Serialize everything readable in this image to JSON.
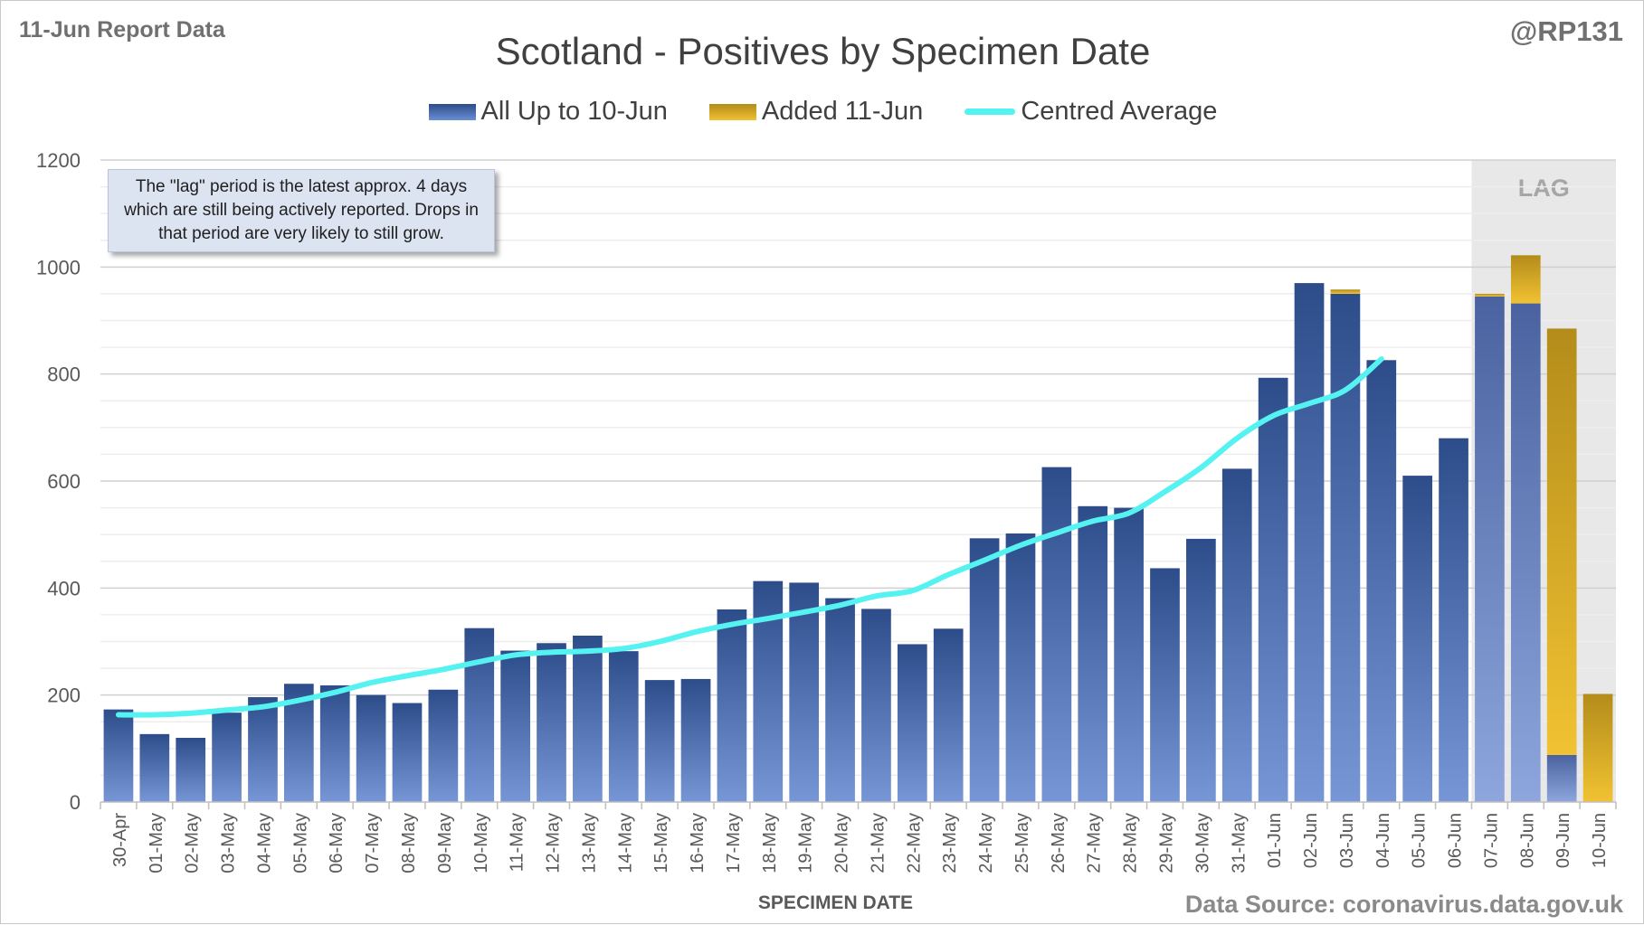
{
  "header": {
    "report_label": "11-Jun Report Data",
    "author": "@RP131",
    "source": "Data Source: coronavirus.data.gov.uk"
  },
  "annotation": "The \"lag\" period is the latest approx. 4 days which are still being actively reported.  Drops in that period are very likely to still grow.",
  "lag_label": "LAG",
  "colors": {
    "bar_top": "#2d4c8a",
    "bar_bottom": "#7696d6",
    "added_top": "#b38c1a",
    "added_bottom": "#f1c232",
    "average": "#55f2f2",
    "lag_shade": "#e8e8e8",
    "grid": "#d9d9d9"
  },
  "chart_data": {
    "type": "bar",
    "title": "Scotland - Positives by Specimen Date",
    "xlabel": "SPECIMEN DATE",
    "ylabel": "",
    "ylim": [
      0,
      1200
    ],
    "yticks": [
      0,
      200,
      400,
      600,
      800,
      1000,
      1200
    ],
    "legend_position": "top-center",
    "categories": [
      "30-Apr",
      "01-May",
      "02-May",
      "03-May",
      "04-May",
      "05-May",
      "06-May",
      "07-May",
      "08-May",
      "09-May",
      "10-May",
      "11-May",
      "12-May",
      "13-May",
      "14-May",
      "15-May",
      "16-May",
      "17-May",
      "18-May",
      "19-May",
      "20-May",
      "21-May",
      "22-May",
      "23-May",
      "24-May",
      "25-May",
      "26-May",
      "27-May",
      "28-May",
      "29-May",
      "30-May",
      "31-May",
      "01-Jun",
      "02-Jun",
      "03-Jun",
      "04-Jun",
      "05-Jun",
      "06-Jun",
      "07-Jun",
      "08-Jun",
      "09-Jun",
      "10-Jun"
    ],
    "series": [
      {
        "name": "All Up to 10-Jun",
        "kind": "bar",
        "values": [
          173,
          127,
          120,
          167,
          196,
          221,
          218,
          200,
          185,
          210,
          325,
          283,
          297,
          311,
          282,
          228,
          230,
          360,
          413,
          410,
          381,
          361,
          295,
          324,
          493,
          502,
          626,
          553,
          550,
          437,
          492,
          623,
          793,
          970,
          950,
          826,
          610,
          680,
          945,
          932,
          88,
          0
        ]
      },
      {
        "name": "Added 11-Jun",
        "kind": "bar-stacked",
        "values": [
          0,
          0,
          0,
          0,
          0,
          0,
          0,
          0,
          0,
          0,
          0,
          0,
          0,
          0,
          0,
          0,
          0,
          0,
          0,
          0,
          0,
          0,
          0,
          0,
          0,
          0,
          0,
          0,
          0,
          0,
          0,
          0,
          0,
          0,
          8,
          0,
          0,
          0,
          5,
          90,
          797,
          202
        ]
      },
      {
        "name": "Centred Average",
        "kind": "line",
        "values": [
          163,
          163,
          166,
          172,
          178,
          190,
          205,
          223,
          236,
          248,
          262,
          275,
          280,
          282,
          287,
          300,
          318,
          332,
          343,
          355,
          368,
          385,
          395,
          425,
          452,
          480,
          503,
          525,
          540,
          580,
          625,
          680,
          722,
          745,
          770,
          828,
          null,
          null,
          null,
          null,
          null,
          null
        ]
      }
    ],
    "lag_range": [
      "07-Jun",
      "10-Jun"
    ]
  }
}
